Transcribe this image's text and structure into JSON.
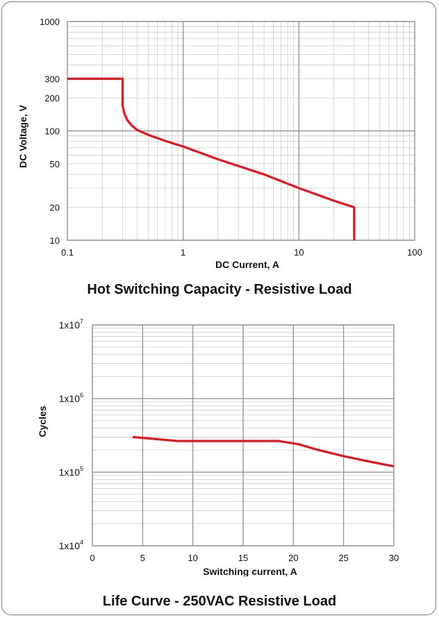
{
  "chart_data": [
    {
      "type": "line",
      "title": "Hot Switching Capacity - Resistive Load",
      "xlabel": "DC Current, A",
      "ylabel": "DC Voltage, V",
      "xscale": "log",
      "yscale": "log",
      "xlim": [
        0.1,
        100
      ],
      "ylim": [
        10,
        1000
      ],
      "xticks": [
        0.1,
        1,
        10,
        100
      ],
      "xtick_labels": [
        "0.1",
        "1",
        "10",
        "100"
      ],
      "yticks": [
        1000,
        300,
        200,
        100,
        50,
        20,
        10
      ],
      "ytick_labels": [
        "1000",
        "300",
        "200",
        "100",
        "50",
        "20",
        "10"
      ],
      "grid": true,
      "line_color": "#e8141c",
      "series": [
        {
          "x": [
            0.1,
            0.3,
            0.3,
            0.31,
            0.33,
            0.36,
            0.4,
            0.5,
            0.7,
            1,
            2,
            5,
            10,
            20,
            30,
            30
          ],
          "y": [
            300,
            300,
            170,
            145,
            125,
            112,
            102,
            92,
            81,
            72,
            55,
            40,
            30,
            23,
            20,
            10
          ]
        }
      ]
    },
    {
      "type": "line",
      "title": "Life Curve - 250VAC Resistive Load",
      "xlabel": "Switching current, A",
      "ylabel": "Cycles",
      "yscale": "log",
      "xlim": [
        0,
        30
      ],
      "ylim": [
        10000,
        10000000
      ],
      "xticks": [
        0,
        5,
        10,
        15,
        20,
        25,
        30
      ],
      "xtick_labels": [
        "0",
        "5",
        "10",
        "15",
        "20",
        "25",
        "30"
      ],
      "yticks": [
        10000,
        100000,
        1000000,
        10000000
      ],
      "ytick_labels": [
        {
          "base": "1x10",
          "exp": "4"
        },
        {
          "base": "1x10",
          "exp": "5"
        },
        {
          "base": "1x10",
          "exp": "6"
        },
        {
          "base": "1x10",
          "exp": "7"
        }
      ],
      "grid": true,
      "line_color": "#e8141c",
      "series": [
        {
          "x": [
            4,
            8.5,
            18.5,
            20.5,
            22.5,
            25,
            27.5,
            30
          ],
          "y": [
            300000,
            265000,
            265000,
            240000,
            200000,
            165000,
            140000,
            120000
          ]
        }
      ]
    }
  ]
}
